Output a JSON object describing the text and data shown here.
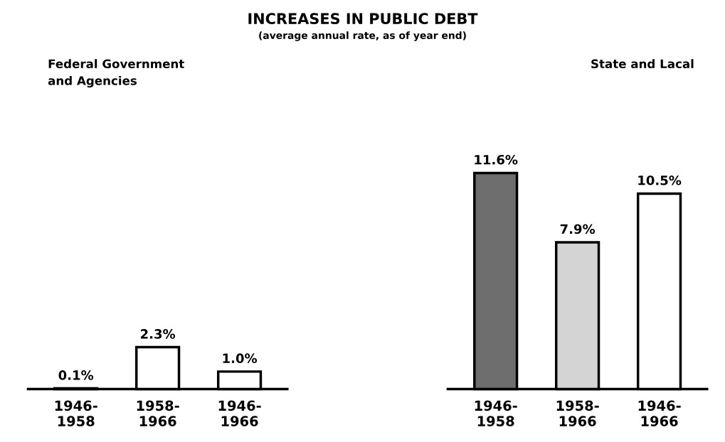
{
  "chart_data": [
    {
      "type": "bar",
      "title": "INCREASES IN PUBLIC DEBT",
      "subtitle": "(average annual rate, as of year end)",
      "annotations": [
        "Federal Government\nand Agencies"
      ],
      "categories": [
        "1946-\n1958",
        "1958-\n1966",
        "1946-\n1966"
      ],
      "values": [
        0.1,
        2.3,
        1.0
      ],
      "colors": [
        "#ffffff",
        "#ffffff",
        "#ffffff"
      ],
      "value_labels": [
        "0.1%",
        "2.3%",
        "1.0%"
      ]
    },
    {
      "type": "bar",
      "annotations": [
        "State and Lacal"
      ],
      "categories": [
        "1946-\n1958",
        "1958-\n1966",
        "1946-\n1966"
      ],
      "values": [
        11.6,
        7.9,
        10.5
      ],
      "colors": [
        "#6e6e6e",
        "#d4d4d4",
        "#ffffff"
      ],
      "value_labels": [
        "11.6%",
        "7.9%",
        "10.5%"
      ]
    }
  ]
}
